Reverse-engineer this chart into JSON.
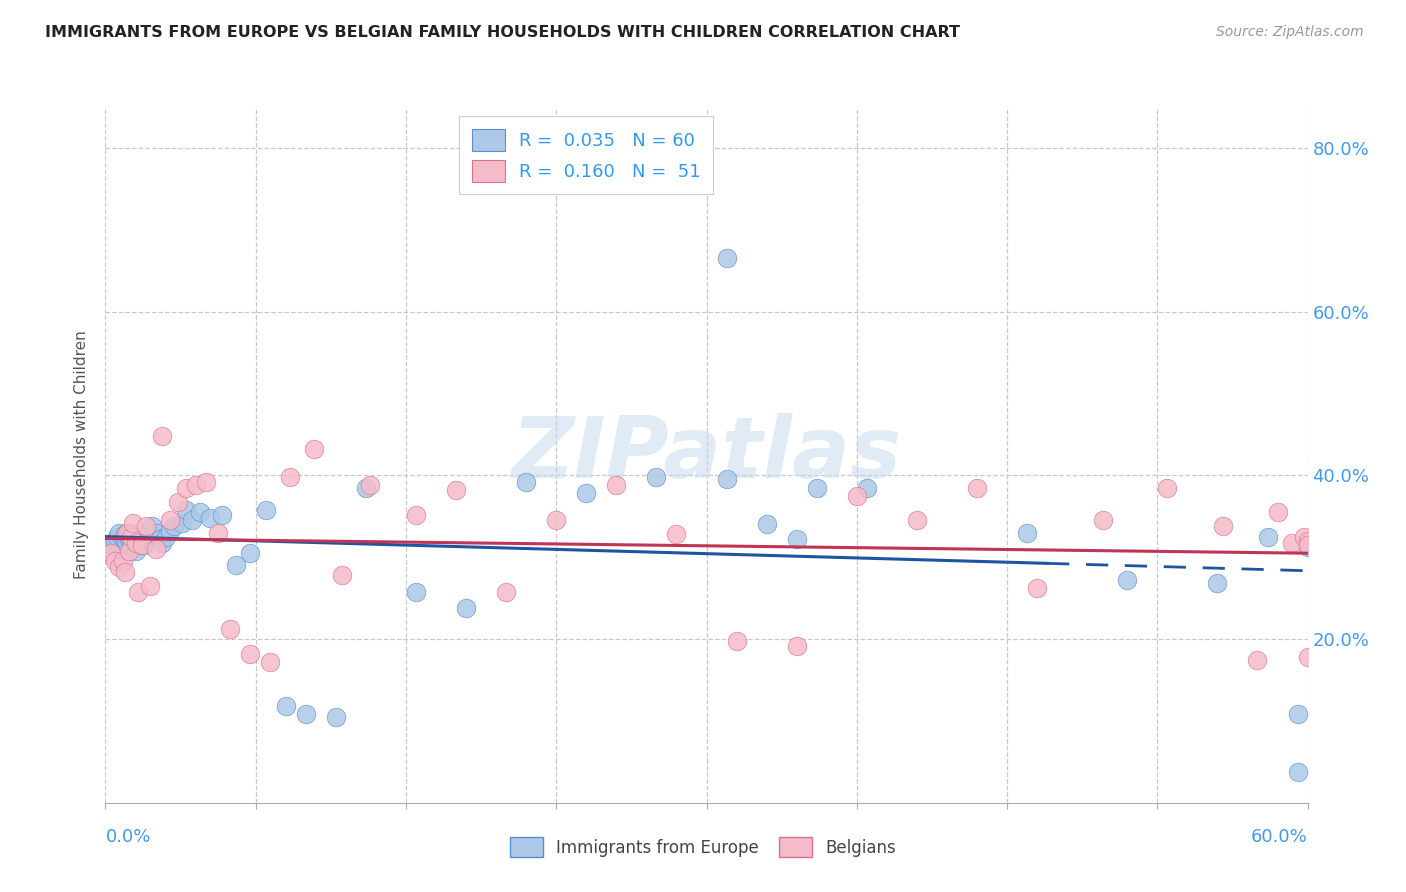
{
  "title": "IMMIGRANTS FROM EUROPE VS BELGIAN FAMILY HOUSEHOLDS WITH CHILDREN CORRELATION CHART",
  "source": "Source: ZipAtlas.com",
  "ylabel": "Family Households with Children",
  "xlim": [
    0.0,
    0.6
  ],
  "ylim": [
    0.0,
    0.85
  ],
  "xticks_minor": [
    0.0,
    0.075,
    0.15,
    0.225,
    0.3,
    0.375,
    0.45,
    0.525,
    0.6
  ],
  "yticks": [
    0.2,
    0.4,
    0.6,
    0.8
  ],
  "yticklabels": [
    "20.0%",
    "40.0%",
    "60.0%",
    "80.0%"
  ],
  "blue_fill": "#adc8e8",
  "blue_edge": "#5590d0",
  "pink_fill": "#f5bbc8",
  "pink_edge": "#d87090",
  "blue_line": "#1e55a0",
  "pink_line": "#c03555",
  "watermark": "ZIPatlas",
  "blue_x": [
    0.003,
    0.005,
    0.006,
    0.007,
    0.008,
    0.009,
    0.01,
    0.01,
    0.011,
    0.012,
    0.012,
    0.013,
    0.014,
    0.015,
    0.015,
    0.016,
    0.017,
    0.018,
    0.019,
    0.02,
    0.021,
    0.022,
    0.023,
    0.025,
    0.027,
    0.028,
    0.03,
    0.032,
    0.034,
    0.038,
    0.04,
    0.043,
    0.047,
    0.052,
    0.058,
    0.065,
    0.072,
    0.08,
    0.09,
    0.1,
    0.115,
    0.13,
    0.155,
    0.18,
    0.21,
    0.24,
    0.275,
    0.31,
    0.345,
    0.38,
    0.31,
    0.33,
    0.355,
    0.46,
    0.51,
    0.555,
    0.58,
    0.595,
    0.595,
    0.6
  ],
  "blue_y": [
    0.315,
    0.32,
    0.325,
    0.33,
    0.31,
    0.308,
    0.32,
    0.328,
    0.318,
    0.322,
    0.33,
    0.315,
    0.325,
    0.308,
    0.318,
    0.32,
    0.315,
    0.325,
    0.315,
    0.322,
    0.328,
    0.332,
    0.338,
    0.33,
    0.322,
    0.318,
    0.325,
    0.332,
    0.338,
    0.342,
    0.358,
    0.345,
    0.355,
    0.348,
    0.352,
    0.29,
    0.305,
    0.358,
    0.118,
    0.108,
    0.105,
    0.385,
    0.258,
    0.238,
    0.392,
    0.378,
    0.398,
    0.395,
    0.322,
    0.385,
    0.665,
    0.34,
    0.385,
    0.33,
    0.272,
    0.268,
    0.325,
    0.038,
    0.108,
    0.312
  ],
  "pink_x": [
    0.003,
    0.005,
    0.007,
    0.009,
    0.01,
    0.011,
    0.012,
    0.013,
    0.014,
    0.015,
    0.016,
    0.018,
    0.02,
    0.022,
    0.025,
    0.028,
    0.032,
    0.036,
    0.04,
    0.045,
    0.05,
    0.056,
    0.062,
    0.072,
    0.082,
    0.092,
    0.104,
    0.118,
    0.132,
    0.155,
    0.175,
    0.2,
    0.225,
    0.255,
    0.285,
    0.315,
    0.345,
    0.375,
    0.405,
    0.435,
    0.465,
    0.498,
    0.53,
    0.558,
    0.575,
    0.585,
    0.592,
    0.598,
    0.6,
    0.6,
    0.6
  ],
  "pink_y": [
    0.305,
    0.295,
    0.288,
    0.295,
    0.282,
    0.33,
    0.308,
    0.325,
    0.342,
    0.318,
    0.258,
    0.315,
    0.338,
    0.265,
    0.31,
    0.448,
    0.345,
    0.368,
    0.385,
    0.388,
    0.392,
    0.33,
    0.212,
    0.182,
    0.172,
    0.398,
    0.432,
    0.278,
    0.388,
    0.352,
    0.382,
    0.258,
    0.345,
    0.388,
    0.328,
    0.198,
    0.192,
    0.375,
    0.345,
    0.385,
    0.262,
    0.345,
    0.385,
    0.338,
    0.175,
    0.355,
    0.318,
    0.325,
    0.32,
    0.315,
    0.178
  ]
}
